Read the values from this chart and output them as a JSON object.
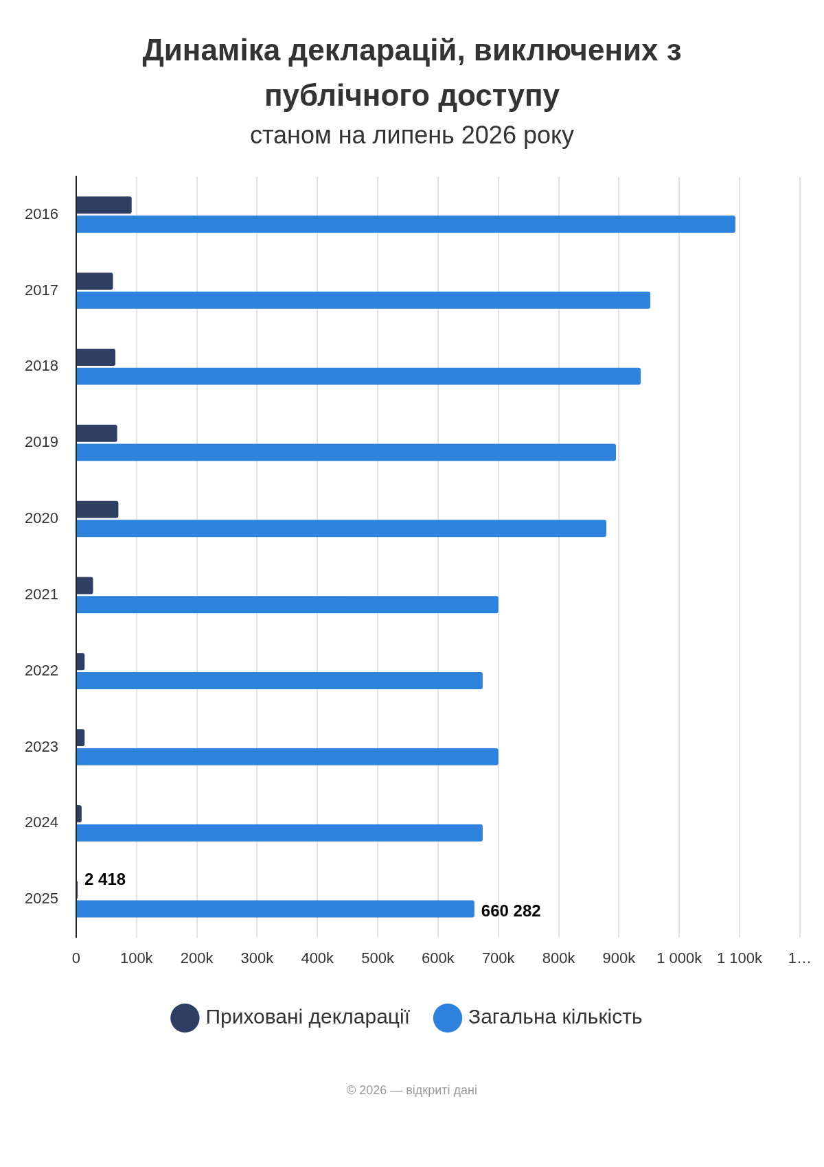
{
  "chart_data": {
    "type": "bar",
    "orientation": "horizontal",
    "title": "Динаміка декларацій, виключених з публічного доступу",
    "subtitle": "станом на липень 2026 року",
    "categories": [
      "2016",
      "2017",
      "2018",
      "2019",
      "2020",
      "2021",
      "2022",
      "2023",
      "2024",
      "2025"
    ],
    "series": [
      {
        "name": "Приховані декларації",
        "color": "#2e3f63",
        "values": [
          92000,
          61000,
          65000,
          68000,
          70000,
          28000,
          14000,
          14000,
          9000,
          2418
        ],
        "value_labels": [
          null,
          null,
          null,
          null,
          null,
          null,
          null,
          null,
          null,
          "2 418"
        ]
      },
      {
        "name": "Загальна кількість",
        "color": "#2c82dc",
        "values": [
          1093000,
          952000,
          936000,
          895000,
          879000,
          700000,
          674000,
          700000,
          674000,
          660282
        ],
        "value_labels": [
          null,
          null,
          null,
          null,
          null,
          null,
          null,
          null,
          null,
          "660 282"
        ]
      }
    ],
    "xlim": [
      0,
      1200000
    ],
    "xticks": [
      0,
      {
        "value": 100000,
        "label": "100k"
      },
      {
        "value": 200000,
        "label": "200k"
      },
      {
        "value": 300000,
        "label": "300k"
      },
      {
        "value": 400000,
        "label": "400k"
      },
      {
        "value": 500000,
        "label": "500k"
      },
      {
        "value": 600000,
        "label": "600k"
      },
      {
        "value": 700000,
        "label": "700k"
      },
      {
        "value": 800000,
        "label": "800k"
      },
      {
        "value": 900000,
        "label": "900k"
      },
      {
        "value": 1000000,
        "label": "1 000k"
      },
      {
        "value": 1100000,
        "label": "1 100k"
      },
      {
        "value": 1200000,
        "label": "1…"
      }
    ],
    "grid": "x",
    "legend": "bottom",
    "marker": "circle",
    "annotations": [
      "© 2026 — відкриті дані"
    ]
  }
}
